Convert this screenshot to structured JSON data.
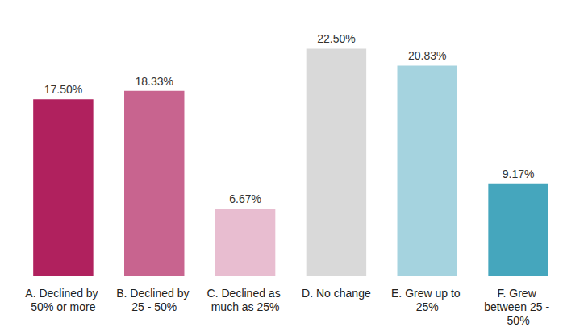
{
  "chart_data": {
    "type": "bar",
    "categories": [
      "A. Declined by 50% or more",
      "B. Declined by 25 - 50%",
      "C. Declined as much as 25%",
      "D. No change",
      "E. Grew up to 25%",
      "F. Grew between 25 - 50%"
    ],
    "values": [
      17.5,
      18.33,
      6.67,
      22.5,
      20.83,
      9.17
    ],
    "value_labels": [
      "17.50%",
      "18.33%",
      "6.67%",
      "22.50%",
      "20.83%",
      "9.17%"
    ],
    "colors": [
      "#b0215e",
      "#c8648f",
      "#e8bdd0",
      "#d9d9d9",
      "#a5d3df",
      "#45a6bd"
    ],
    "data_labels": true,
    "grid": false,
    "tick_labels": "x"
  }
}
